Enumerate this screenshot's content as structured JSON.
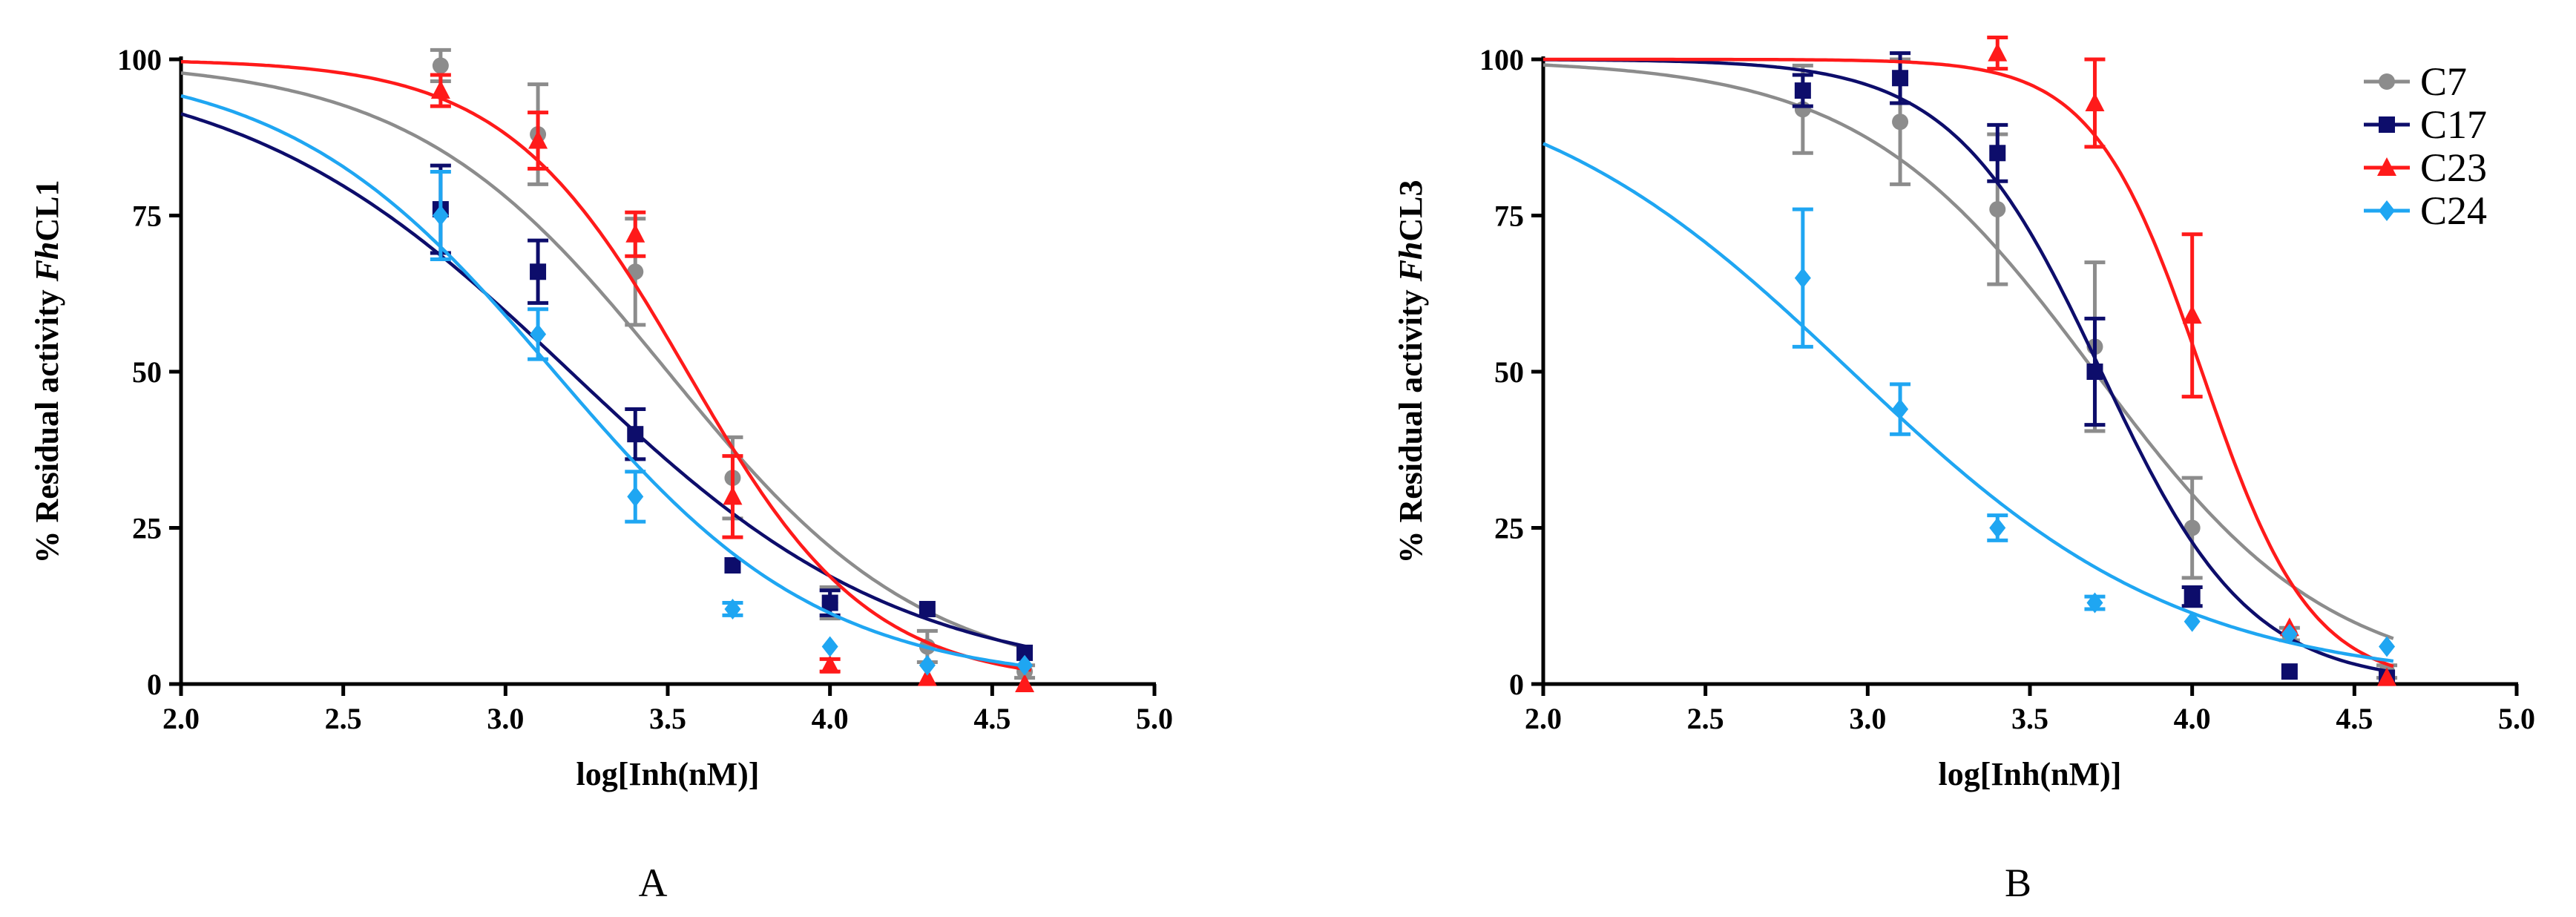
{
  "legend": [
    {
      "name": "C7",
      "color": "#8c8c8c",
      "marker": "circle"
    },
    {
      "name": "C17",
      "color": "#0d0d6b",
      "marker": "square"
    },
    {
      "name": "C23",
      "color": "#ff1a1a",
      "marker": "triangle"
    },
    {
      "name": "C24",
      "color": "#1fa6f2",
      "marker": "diamond"
    }
  ],
  "chart_data": [
    {
      "type": "scatter",
      "panel_label": "A",
      "title": "",
      "xlabel": "log[Inh(nM)]",
      "ylabel_parts": {
        "prefix": "% Residual activity ",
        "italic": "Fh",
        "suffix": "CL1"
      },
      "xlim": [
        2.0,
        5.0
      ],
      "ylim": [
        0,
        100
      ],
      "xticks": [
        "2.0",
        "2.5",
        "3.0",
        "3.5",
        "4.0",
        "4.5",
        "5.0"
      ],
      "yticks": [
        "0",
        "25",
        "50",
        "75",
        "100"
      ],
      "series": [
        {
          "name": "C7",
          "x": [
            2.8,
            3.1,
            3.4,
            3.7,
            4.0,
            4.3,
            4.6
          ],
          "y": [
            99,
            88,
            66,
            33,
            13,
            6,
            2
          ],
          "err": [
            2.5,
            8,
            8.5,
            6.5,
            2.5,
            2.5,
            1
          ],
          "fit": {
            "top": 100,
            "bottom": 0,
            "logIC50": 3.5,
            "hill": 1.1
          }
        },
        {
          "name": "C17",
          "x": [
            2.8,
            3.1,
            3.4,
            3.7,
            4.0,
            4.3,
            4.6
          ],
          "y": [
            76,
            66,
            40,
            19,
            13,
            12,
            5
          ],
          "err": [
            7,
            5,
            4,
            0,
            2,
            0,
            0
          ],
          "fit": {
            "top": 100,
            "bottom": 0,
            "logIC50": 3.2,
            "hill": 0.85
          }
        },
        {
          "name": "C23",
          "x": [
            2.8,
            3.1,
            3.4,
            3.7,
            4.0,
            4.3,
            4.6
          ],
          "y": [
            95,
            87,
            72,
            30,
            3,
            1,
            0
          ],
          "err": [
            2.5,
            4.5,
            3.5,
            6.5,
            1,
            0,
            0
          ],
          "fit": {
            "top": 100,
            "bottom": 0,
            "logIC50": 3.56,
            "hill": 1.55
          }
        },
        {
          "name": "C24",
          "x": [
            2.8,
            3.1,
            3.4,
            3.7,
            4.0,
            4.3,
            4.6
          ],
          "y": [
            75,
            56,
            30,
            12,
            6,
            3,
            3
          ],
          "err": [
            7,
            4,
            4,
            1,
            0,
            0,
            0
          ],
          "fit": {
            "top": 100,
            "bottom": 0,
            "logIC50": 3.15,
            "hill": 1.05
          }
        }
      ]
    },
    {
      "type": "scatter",
      "panel_label": "B",
      "title": "",
      "xlabel": "log[Inh(nM)]",
      "ylabel_parts": {
        "prefix": "% Residual activity ",
        "italic": "Fh",
        "suffix": "CL3"
      },
      "xlim": [
        2.0,
        5.0
      ],
      "ylim": [
        0,
        100
      ],
      "xticks": [
        "2.0",
        "2.5",
        "3.0",
        "3.5",
        "4.0",
        "4.5",
        "5.0"
      ],
      "yticks": [
        "0",
        "25",
        "50",
        "75",
        "100"
      ],
      "series": [
        {
          "name": "C7",
          "x": [
            2.8,
            3.1,
            3.4,
            3.7,
            4.0,
            4.3,
            4.6
          ],
          "y": [
            92,
            90,
            76,
            54,
            25,
            8,
            2
          ],
          "err": [
            7,
            10,
            12,
            13.5,
            8,
            1,
            1
          ],
          "fit": {
            "top": 100,
            "bottom": 0,
            "logIC50": 3.7,
            "hill": 1.2
          }
        },
        {
          "name": "C17",
          "x": [
            2.8,
            3.1,
            3.4,
            3.7,
            4.0,
            4.3,
            4.6
          ],
          "y": [
            95,
            97,
            85,
            50,
            14,
            2,
            1
          ],
          "err": [
            2.5,
            4,
            4.5,
            8.5,
            1.5,
            0,
            0
          ],
          "fit": {
            "top": 100,
            "bottom": 0,
            "logIC50": 3.72,
            "hill": 1.9
          }
        },
        {
          "name": "C23",
          "x": [
            3.4,
            3.7,
            4.0,
            4.3,
            4.6
          ],
          "y": [
            101,
            93,
            59,
            9,
            1
          ],
          "err": [
            2.5,
            7,
            13,
            0,
            0
          ],
          "fit": {
            "top": 100,
            "bottom": 0,
            "logIC50": 4.03,
            "hill": 2.6
          }
        },
        {
          "name": "C24",
          "x": [
            2.8,
            3.1,
            3.4,
            3.7,
            4.0,
            4.3,
            4.6
          ],
          "y": [
            65,
            44,
            25,
            13,
            10,
            8,
            6
          ],
          "err": [
            11,
            4,
            2,
            1,
            0,
            0,
            0
          ],
          "fit": {
            "top": 100,
            "bottom": 0,
            "logIC50": 2.95,
            "hill": 0.85
          }
        }
      ]
    }
  ]
}
